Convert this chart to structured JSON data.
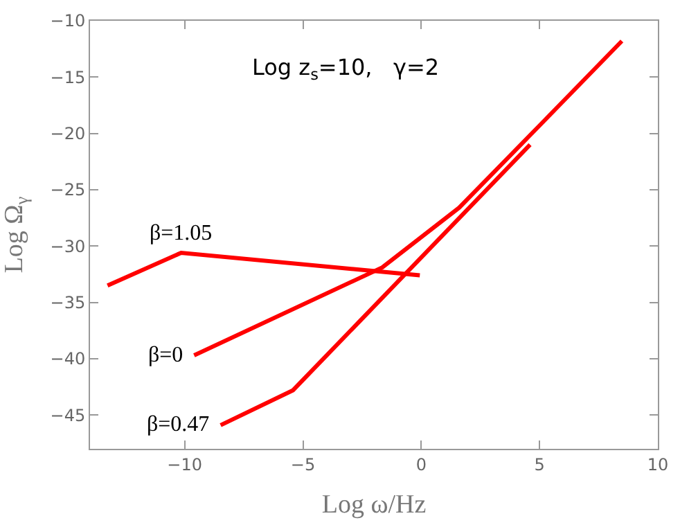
{
  "chart_data": {
    "type": "line",
    "xlabel": "Log ω/Hz",
    "ylabel": "Log Ω$_{γ}$",
    "annotations": [
      "Log z$_{s}$=10,   γ=2"
    ],
    "series": [
      {
        "name": "β=1.05",
        "color": "#ff0000",
        "x": [
          -13.26,
          -10.15,
          -0.06
        ],
        "values": [
          -33.5,
          -30.6,
          -32.6
        ]
      },
      {
        "name": "β=0",
        "color": "#ff0000",
        "x": [
          -9.6,
          -1.65,
          1.6,
          5,
          8.48
        ],
        "values": [
          -39.7,
          -31.9,
          -26.6,
          -19.3,
          -11.8
        ]
      },
      {
        "name": "β=0.47",
        "color": "#ff0000",
        "x": [
          -8.48,
          -5.42,
          4.6
        ],
        "values": [
          -45.9,
          -42.8,
          -21.0
        ]
      }
    ],
    "xlim": [
      -14,
      10
    ],
    "xticks": [
      -10,
      -5,
      0,
      5,
      10
    ],
    "ylim": [
      -48,
      -10
    ],
    "yticks": [
      -45,
      -40,
      -35,
      -30,
      -25,
      -20,
      -15,
      -10
    ],
    "marker": "none",
    "line_style": "solid"
  }
}
